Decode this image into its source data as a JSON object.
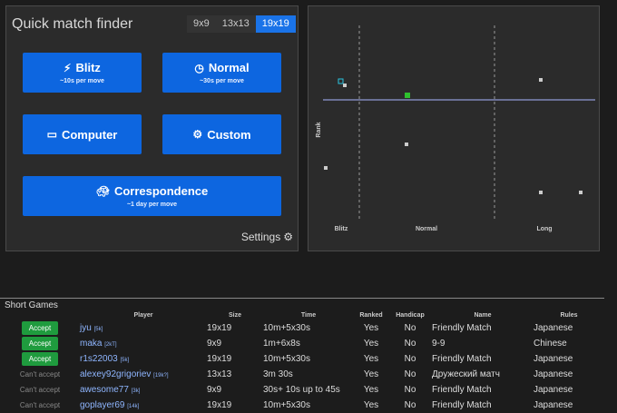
{
  "finder": {
    "title": "Quick match finder",
    "board_sizes": [
      {
        "label": "9x9",
        "active": false
      },
      {
        "label": "13x13",
        "active": false
      },
      {
        "label": "19x19",
        "active": true
      }
    ],
    "blitz": {
      "label": "Blitz",
      "sub": "~10s per move",
      "icon": "bolt-icon"
    },
    "normal": {
      "label": "Normal",
      "sub": "~30s per move",
      "icon": "clock-icon"
    },
    "computer": {
      "label": "Computer",
      "icon": "monitor-icon"
    },
    "custom": {
      "label": "Custom",
      "icon": "gear-icon"
    },
    "correspondence": {
      "label": "Correspondence",
      "sub": "~1 day per move",
      "icon": "turtle-icon"
    },
    "settings_label": "Settings"
  },
  "plot": {
    "ylabel": "Rank",
    "xlabels": [
      "Blitz",
      "Normal",
      "Long"
    ]
  },
  "games": {
    "section_title": "Short Games",
    "columns": [
      "Player",
      "Size",
      "Time",
      "Ranked",
      "Handicap",
      "Name",
      "Rules"
    ],
    "rows": [
      {
        "action": "Accept",
        "can_accept": true,
        "player": "jyu",
        "rank": "[5k]",
        "size": "19x19",
        "time": "10m+5x30s",
        "ranked": "Yes",
        "handicap": "No",
        "name": "Friendly Match",
        "rules": "Japanese"
      },
      {
        "action": "Accept",
        "can_accept": true,
        "player": "maka",
        "rank": "[2kT]",
        "size": "9x9",
        "time": "1m+6x8s",
        "ranked": "Yes",
        "handicap": "No",
        "name": "9-9",
        "rules": "Chinese"
      },
      {
        "action": "Accept",
        "can_accept": true,
        "player": "r1s22003",
        "rank": "[5k]",
        "size": "19x19",
        "time": "10m+5x30s",
        "ranked": "Yes",
        "handicap": "No",
        "name": "Friendly Match",
        "rules": "Japanese"
      },
      {
        "action": "Can't accept",
        "can_accept": false,
        "player": "alexey92grigoriev",
        "rank": "[19k?]",
        "size": "13x13",
        "time": "3m 30s",
        "ranked": "Yes",
        "handicap": "No",
        "name": "Дружеский матч",
        "rules": "Japanese"
      },
      {
        "action": "Can't accept",
        "can_accept": false,
        "player": "awesome77",
        "rank": "[3k]",
        "size": "9x9",
        "time": "30s+ 10s up to 45s",
        "ranked": "Yes",
        "handicap": "No",
        "name": "Friendly Match",
        "rules": "Japanese"
      },
      {
        "action": "Can't accept",
        "can_accept": false,
        "player": "goplayer69",
        "rank": "[14k]",
        "size": "19x19",
        "time": "10m+5x30s",
        "ranked": "Yes",
        "handicap": "No",
        "name": "Friendly Match",
        "rules": "Japanese"
      }
    ]
  },
  "colors": {
    "accent": "#0d66e0",
    "accept": "#1f9b3e",
    "active_size": "#1a73e8",
    "link": "#8fb6ff"
  }
}
